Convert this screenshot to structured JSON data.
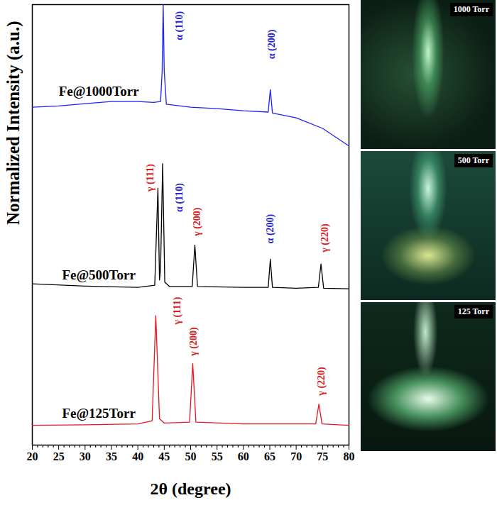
{
  "chart_data": {
    "type": "line",
    "x_label": "2θ (degree)",
    "y_label": "Normalized Intensity (a.u.)",
    "xlim": [
      20,
      80
    ],
    "xticks": [
      20,
      25,
      30,
      35,
      40,
      45,
      50,
      55,
      60,
      65,
      70,
      75,
      80
    ],
    "ylim": [
      0,
      100
    ],
    "tick_labels": "x",
    "series": [
      {
        "name": "Fe@1000Torr",
        "color": "#1f1fff",
        "x": [
          20,
          25,
          30,
          35,
          40,
          43,
          44.3,
          44.6,
          44.8,
          45.0,
          45.4,
          50,
          55,
          60,
          64.7,
          65.1,
          65.5,
          70,
          75,
          80
        ],
        "values": [
          76.7,
          77.0,
          77.5,
          78.0,
          78.0,
          77.8,
          78.0,
          84.8,
          100,
          84.8,
          77.4,
          76.7,
          76.4,
          75.9,
          75.6,
          80.7,
          75.4,
          74.3,
          71.9,
          67.9
        ]
      },
      {
        "name": "Fe@500Torr",
        "color": "#000000",
        "x": [
          20,
          30,
          40,
          43.2,
          43.8,
          44.1,
          44.3,
          44.7,
          45.1,
          46,
          50.3,
          50.8,
          51.3,
          60,
          64.7,
          65.1,
          65.5,
          70,
          74.2,
          74.7,
          75.2,
          80
        ],
        "values": [
          36.6,
          36.1,
          35.8,
          36.3,
          58.3,
          37.5,
          40.0,
          63.9,
          37.0,
          36.0,
          36.0,
          45.4,
          36.0,
          35.8,
          35.8,
          42.2,
          35.8,
          35.6,
          35.8,
          41.1,
          35.6,
          35.5
        ]
      },
      {
        "name": "Fe@125Torr",
        "color": "#e8141e",
        "x": [
          20,
          30,
          40,
          42.7,
          43.4,
          44.1,
          45,
          49.8,
          50.4,
          51,
          60,
          73.7,
          74.3,
          74.9,
          80
        ],
        "values": [
          4.5,
          4.6,
          4.8,
          5.5,
          29.4,
          6.0,
          5.0,
          5.2,
          18.5,
          5.2,
          4.8,
          4.8,
          9.3,
          4.8,
          4.5
        ]
      }
    ],
    "annotations": [
      {
        "text": "α (110)",
        "x": 47.8,
        "y": 95.2,
        "color": "#2424d0"
      },
      {
        "text": "α (200)",
        "x": 65.3,
        "y": 91.0,
        "color": "#2424d0"
      },
      {
        "text": "γ (111)",
        "x": 42.3,
        "y": 60.7,
        "color": "#d81c24"
      },
      {
        "text": "α (110)",
        "x": 47.8,
        "y": 56.2,
        "color": "#2424d0"
      },
      {
        "text": "γ (200)",
        "x": 51.2,
        "y": 50.7,
        "color": "#d81c24"
      },
      {
        "text": "α (200)",
        "x": 65.1,
        "y": 49.1,
        "color": "#2424d0"
      },
      {
        "text": "γ (220)",
        "x": 75.4,
        "y": 47.0,
        "color": "#d81c24"
      },
      {
        "text": "γ (111)",
        "x": 47.4,
        "y": 30.5,
        "color": "#d81c24"
      },
      {
        "text": "γ (200)",
        "x": 50.5,
        "y": 23.5,
        "color": "#d81c24"
      },
      {
        "text": "γ (220)",
        "x": 74.8,
        "y": 14.5,
        "color": "#d81c24"
      }
    ]
  },
  "photos": [
    {
      "label": "1000 Torr"
    },
    {
      "label": "500 Torr"
    },
    {
      "label": "125 Torr"
    }
  ]
}
